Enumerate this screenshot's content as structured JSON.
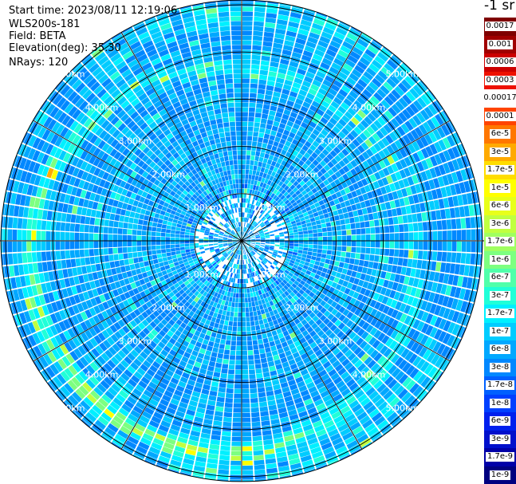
{
  "header": {
    "start_time": "Start time: 2023/08/11 12:19:06",
    "instrument": "WLS200s-181",
    "field": "Field: BETA",
    "elevation": "Elevation(deg): 35.30",
    "nrays": "NRays: 120"
  },
  "colorbar": {
    "unit_label": "-1 sr",
    "entries": [
      {
        "label": "0.0017",
        "color": "#7f0000"
      },
      {
        "label": "0.001",
        "color": "#a00000"
      },
      {
        "label": "0.0006",
        "color": "#cc0000"
      },
      {
        "label": "0.0003",
        "color": "#ee1100"
      },
      {
        "label": "0.00017",
        "color": "#ffffff"
      },
      {
        "label": "0.0001",
        "color": "#ff4400"
      },
      {
        "label": "6e-5",
        "color": "#ff7700"
      },
      {
        "label": "3e-5",
        "color": "#ffaa00"
      },
      {
        "label": "1.7e-5",
        "color": "#ffdd00"
      },
      {
        "label": "1e-5",
        "color": "#ffff00"
      },
      {
        "label": "6e-6",
        "color": "#e8ff1a"
      },
      {
        "label": "3e-6",
        "color": "#c0ff40"
      },
      {
        "label": "1.7e-6",
        "color": "#a0ff60"
      },
      {
        "label": "1e-6",
        "color": "#7dff80"
      },
      {
        "label": "6e-7",
        "color": "#50ffaa"
      },
      {
        "label": "3e-7",
        "color": "#20ffd8"
      },
      {
        "label": "1.7e-7",
        "color": "#00f0ff"
      },
      {
        "label": "1e-7",
        "color": "#00ccff"
      },
      {
        "label": "6e-8",
        "color": "#00a8ff"
      },
      {
        "label": "3e-8",
        "color": "#0088ff"
      },
      {
        "label": "1.7e-8",
        "color": "#0060ff"
      },
      {
        "label": "1e-8",
        "color": "#0040ff"
      },
      {
        "label": "6e-9",
        "color": "#0020ee"
      },
      {
        "label": "3e-9",
        "color": "#0010cc"
      },
      {
        "label": "1.7e-9",
        "color": "#0000a8"
      },
      {
        "label": "1e-9",
        "color": "#000080"
      }
    ]
  },
  "chart_data": {
    "type": "heatmap",
    "projection": "polar",
    "field": "BETA",
    "rays": 120,
    "range_rings_km": [
      1,
      2,
      3,
      4,
      5
    ],
    "range_ring_labels": [
      "1.00km",
      "2.00km",
      "3.00km",
      "4.00km",
      "5.00km"
    ],
    "max_range_km": 5.1,
    "spokes": 12,
    "color_scale": "log",
    "value_range": [
      1e-09,
      0.0017
    ],
    "value_unit": "sr-1",
    "colors": {
      "background": "#ffffff",
      "grid": "#000000",
      "low_scatter": "#1060ff",
      "high_scatter": "#ffdd00"
    }
  }
}
